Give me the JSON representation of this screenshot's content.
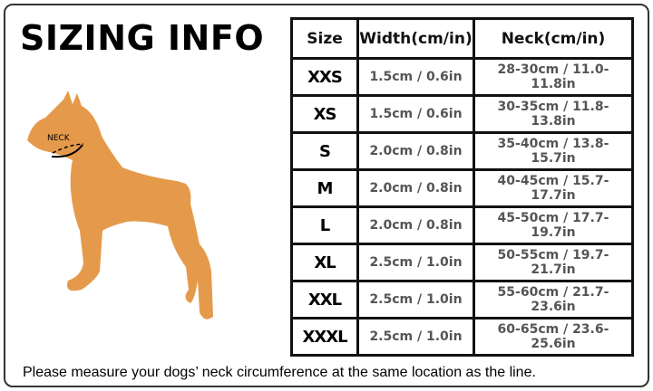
{
  "title": "SIZING INFO",
  "illustration": {
    "neck_label": "NECK",
    "color": "#E59A4B"
  },
  "table": {
    "headers": [
      "Size",
      "Width(cm/in)",
      "Neck(cm/in)"
    ],
    "rows": [
      {
        "size": "XXS",
        "width": "1.5cm / 0.6in",
        "neck": "28-30cm / 11.0-11.8in"
      },
      {
        "size": "XS",
        "width": "1.5cm / 0.6in",
        "neck": "30-35cm / 11.8-13.8in"
      },
      {
        "size": "S",
        "width": "2.0cm / 0.8in",
        "neck": "35-40cm / 13.8-15.7in"
      },
      {
        "size": "M",
        "width": "2.0cm / 0.8in",
        "neck": "40-45cm / 15.7-17.7in"
      },
      {
        "size": "L",
        "width": "2.0cm / 0.8in",
        "neck": "45-50cm / 17.7-19.7in"
      },
      {
        "size": "XL",
        "width": "2.5cm / 1.0in",
        "neck": "50-55cm / 19.7-21.7in"
      },
      {
        "size": "XXL",
        "width": "2.5cm / 1.0in",
        "neck": "55-60cm / 21.7-23.6in"
      },
      {
        "size": "XXXL",
        "width": "2.5cm / 1.0in",
        "neck": "60-65cm / 23.6-25.6in"
      }
    ]
  },
  "note": "Please measure your dogs’  neck circumference at the same location as the line."
}
